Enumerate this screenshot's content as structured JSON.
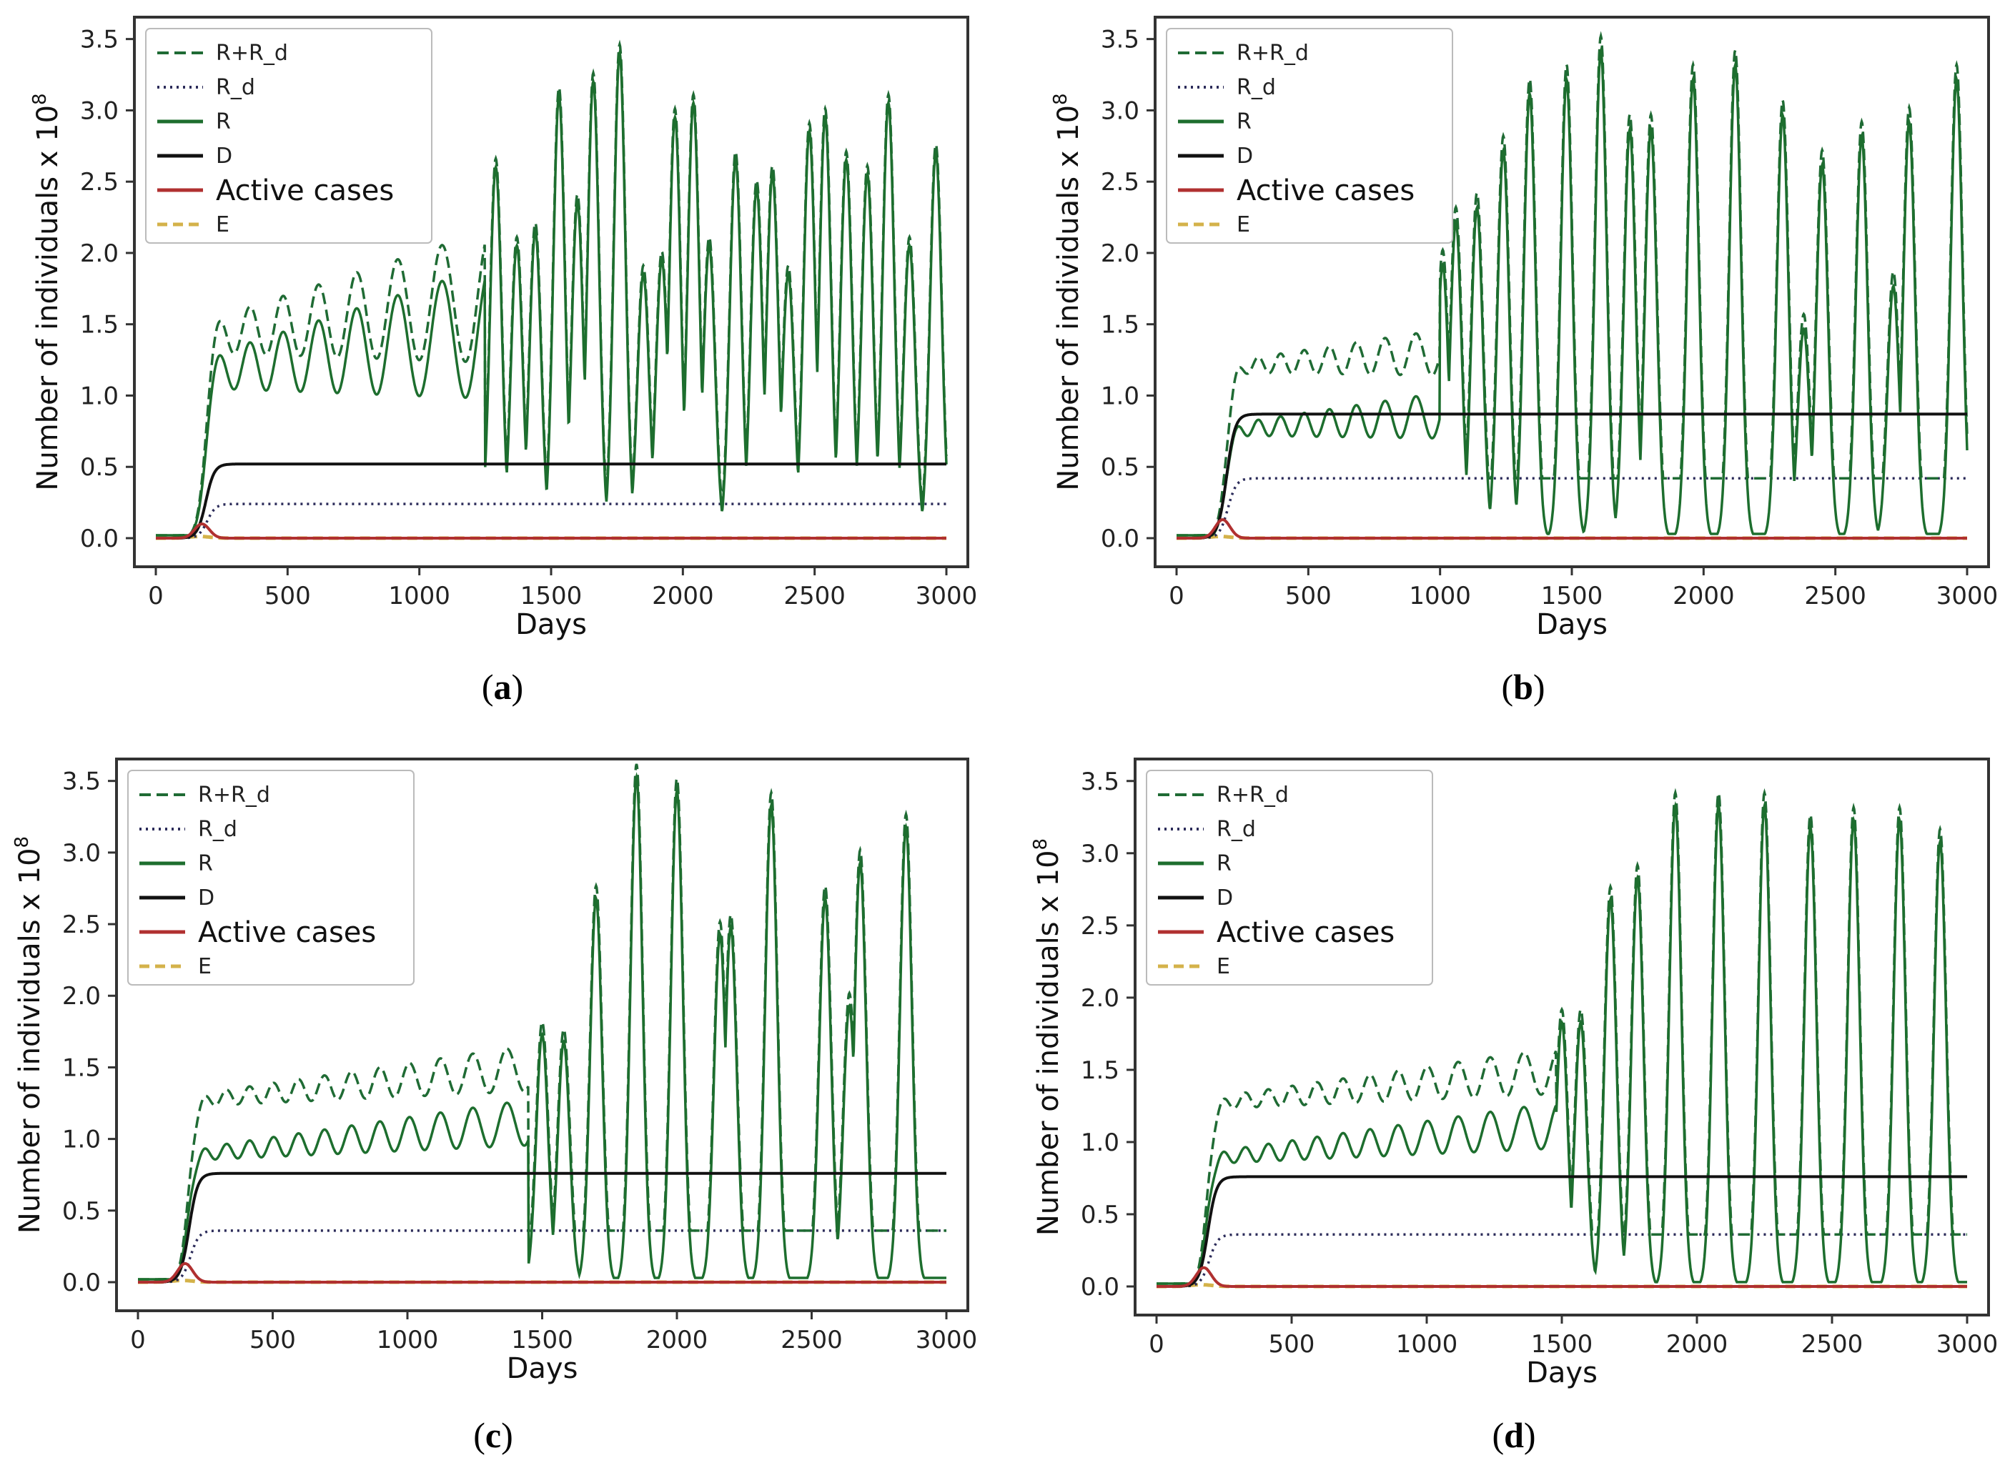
{
  "chart_data": [
    {
      "id": "a",
      "type": "line",
      "caption_letter": "a",
      "xlabel": "Days",
      "ylabel": "Number of individuals  x 10",
      "ylabel_exp": "8",
      "xlim": [
        0,
        3000
      ],
      "ylim": [
        0,
        3.5
      ],
      "xticks": [
        0,
        500,
        1000,
        1500,
        2000,
        2500,
        3000
      ],
      "yticks": [
        0.0,
        0.5,
        1.0,
        1.5,
        2.0,
        2.5,
        3.0,
        3.5
      ],
      "legend": [
        "R+R_d",
        "R_d",
        "R",
        "D",
        "Active cases",
        "E"
      ],
      "model": {
        "D_level": 0.52,
        "Rd_level": 0.24,
        "active_peak": 0.1,
        "osc_start": 1250,
        "base_period": 105,
        "pre_low": 1.05,
        "pre_high": 1.28,
        "pre_growth": 0.55,
        "peaks": [
          [
            1290,
            2.65
          ],
          [
            1370,
            2.1
          ],
          [
            1440,
            2.2
          ],
          [
            1530,
            3.15
          ],
          [
            1600,
            2.4
          ],
          [
            1660,
            3.25
          ],
          [
            1760,
            3.45
          ],
          [
            1850,
            1.9
          ],
          [
            1920,
            2.0
          ],
          [
            1970,
            3.0
          ],
          [
            2040,
            3.1
          ],
          [
            2100,
            2.1
          ],
          [
            2200,
            2.7
          ],
          [
            2280,
            2.5
          ],
          [
            2340,
            2.6
          ],
          [
            2400,
            1.9
          ],
          [
            2480,
            2.9
          ],
          [
            2540,
            3.0
          ],
          [
            2620,
            2.7
          ],
          [
            2700,
            2.6
          ],
          [
            2780,
            3.1
          ],
          [
            2860,
            2.1
          ],
          [
            2960,
            2.75
          ]
        ]
      }
    },
    {
      "id": "b",
      "type": "line",
      "caption_letter": "b",
      "xlabel": "Days",
      "ylabel": "Number of individuals  x 10",
      "ylabel_exp": "8",
      "xlim": [
        0,
        3000
      ],
      "ylim": [
        0,
        3.5
      ],
      "xticks": [
        0,
        500,
        1000,
        1500,
        2000,
        2500,
        3000
      ],
      "yticks": [
        0.0,
        0.5,
        1.0,
        1.5,
        2.0,
        2.5,
        3.0,
        3.5
      ],
      "legend": [
        "R+R_d",
        "R_d",
        "R",
        "D",
        "Active cases",
        "E"
      ],
      "model": {
        "D_level": 0.87,
        "Rd_level": 0.42,
        "active_peak": 0.13,
        "osc_start": 1000,
        "base_period": 70,
        "pre_low": 0.72,
        "pre_high": 0.8,
        "pre_growth": 0.2,
        "peaks": [
          [
            1010,
            2.0
          ],
          [
            1060,
            2.3
          ],
          [
            1140,
            2.4
          ],
          [
            1240,
            2.8
          ],
          [
            1340,
            3.2
          ],
          [
            1480,
            3.3
          ],
          [
            1610,
            3.5
          ],
          [
            1720,
            2.95
          ],
          [
            1800,
            2.95
          ],
          [
            1960,
            3.3
          ],
          [
            2120,
            3.4
          ],
          [
            2300,
            3.05
          ],
          [
            2380,
            1.55
          ],
          [
            2450,
            2.7
          ],
          [
            2600,
            2.9
          ],
          [
            2720,
            1.85
          ],
          [
            2780,
            3.0
          ],
          [
            2960,
            3.3
          ]
        ]
      }
    },
    {
      "id": "c",
      "type": "line",
      "caption_letter": "c",
      "xlabel": "Days",
      "ylabel": "Number of individuals  x 10",
      "ylabel_exp": "8",
      "xlim": [
        0,
        3000
      ],
      "ylim": [
        0,
        3.5
      ],
      "xticks": [
        0,
        500,
        1000,
        1500,
        2000,
        2500,
        3000
      ],
      "yticks": [
        0.0,
        0.5,
        1.0,
        1.5,
        2.0,
        2.5,
        3.0,
        3.5
      ],
      "legend": [
        "R+R_d",
        "R_d",
        "R",
        "D",
        "Active cases",
        "E"
      ],
      "model": {
        "D_level": 0.76,
        "Rd_level": 0.36,
        "active_peak": 0.13,
        "osc_start": 1450,
        "base_period": 75,
        "pre_low": 0.85,
        "pre_high": 0.93,
        "pre_growth": 0.45,
        "peaks": [
          [
            1500,
            1.8
          ],
          [
            1580,
            1.75
          ],
          [
            1700,
            2.75
          ],
          [
            1850,
            3.6
          ],
          [
            2000,
            3.5
          ],
          [
            2160,
            2.5
          ],
          [
            2200,
            2.55
          ],
          [
            2350,
            3.4
          ],
          [
            2550,
            2.75
          ],
          [
            2640,
            2.0
          ],
          [
            2680,
            3.0
          ],
          [
            2850,
            3.25
          ]
        ]
      }
    },
    {
      "id": "d",
      "type": "line",
      "caption_letter": "d",
      "xlabel": "Days",
      "ylabel": "Number of individuals  x 10",
      "ylabel_exp": "8",
      "xlim": [
        0,
        3000
      ],
      "ylim": [
        0,
        3.5
      ],
      "xticks": [
        0,
        500,
        1000,
        1500,
        2000,
        2500,
        3000
      ],
      "yticks": [
        0.0,
        0.5,
        1.0,
        1.5,
        2.0,
        2.5,
        3.0,
        3.5
      ],
      "legend": [
        "R+R_d",
        "R_d",
        "R",
        "D",
        "Active cases",
        "E"
      ],
      "model": {
        "D_level": 0.76,
        "Rd_level": 0.36,
        "active_peak": 0.13,
        "osc_start": 1480,
        "base_period": 75,
        "pre_low": 0.85,
        "pre_high": 0.93,
        "pre_growth": 0.45,
        "peaks": [
          [
            1500,
            1.9
          ],
          [
            1570,
            1.9
          ],
          [
            1680,
            2.75
          ],
          [
            1780,
            2.9
          ],
          [
            1920,
            3.4
          ],
          [
            2080,
            3.4
          ],
          [
            2250,
            3.4
          ],
          [
            2420,
            3.25
          ],
          [
            2580,
            3.3
          ],
          [
            2750,
            3.3
          ],
          [
            2900,
            3.15
          ]
        ]
      }
    }
  ],
  "colors": {
    "R_plus_Rd": "#1f6b34",
    "Rd": "#2c2c5a",
    "R": "#1d6e2e",
    "D": "#111111",
    "active": "#b03030",
    "E": "#d4b24a",
    "axis": "#333333"
  }
}
